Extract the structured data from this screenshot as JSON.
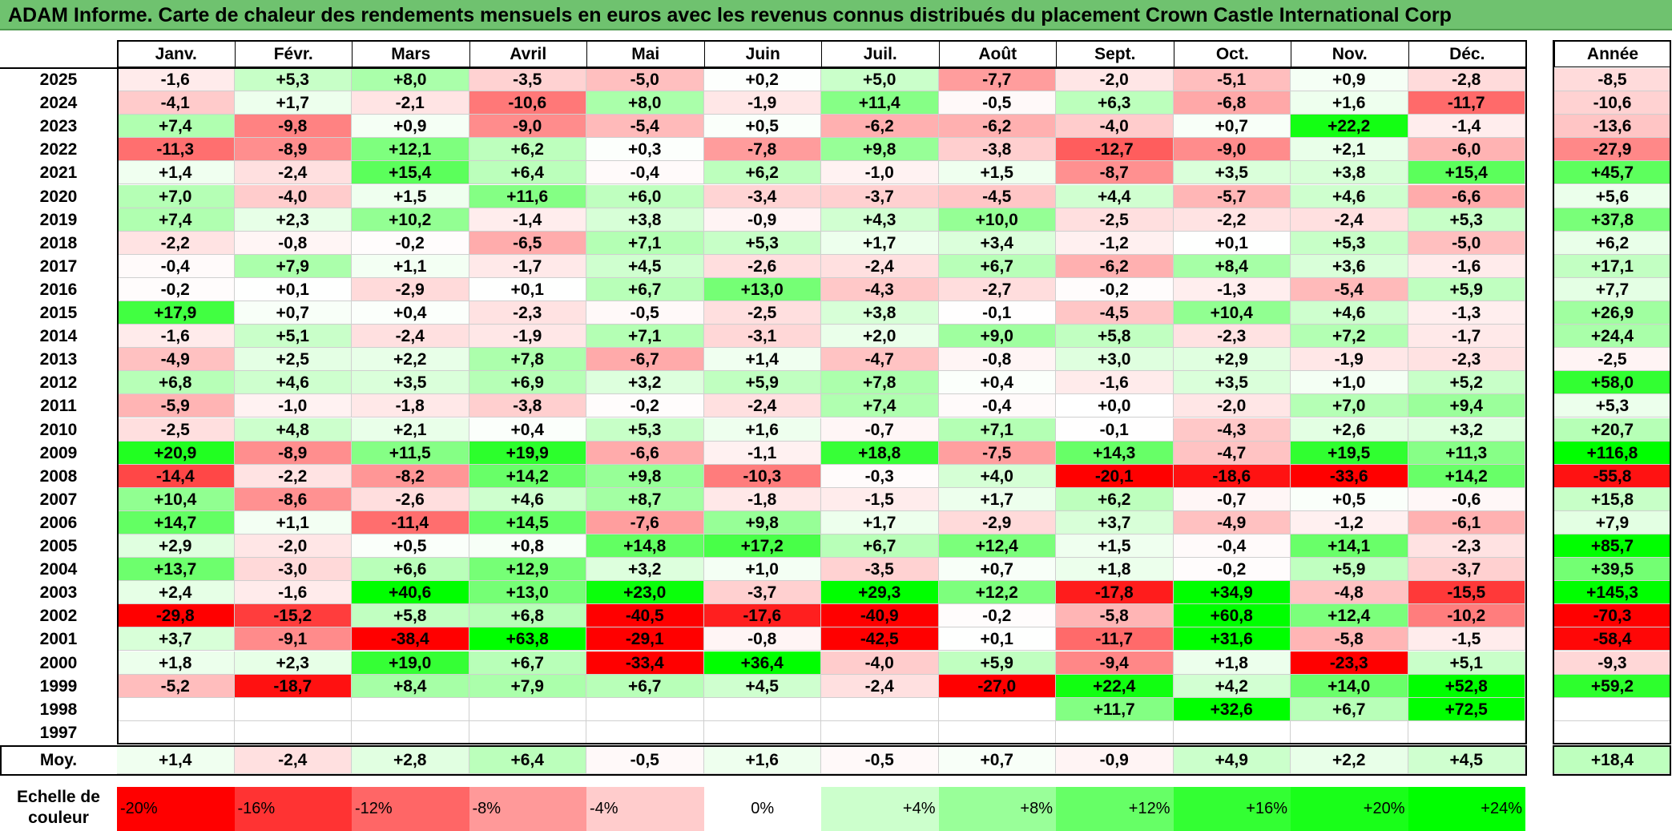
{
  "title": "ADAM Informe. Carte de chaleur des rendements mensuels en euros avec les revenus connus distribués du placement Crown Castle International Corp",
  "chart_data": {
    "type": "heatmap",
    "months": [
      "Janv.",
      "Févr.",
      "Mars",
      "Avril",
      "Mai",
      "Juin",
      "Juil.",
      "Août",
      "Sept.",
      "Oct.",
      "Nov.",
      "Déc."
    ],
    "year_header": "Année",
    "rows": [
      {
        "year": "2025",
        "values": [
          "-1,6",
          "+5,3",
          "+8,0",
          "-3,5",
          "-5,0",
          "+0,2",
          "+5,0",
          "-7,7",
          "-2,0",
          "-5,1",
          "+0,9",
          "-2,8"
        ],
        "annual": "-8,5"
      },
      {
        "year": "2024",
        "values": [
          "-4,1",
          "+1,7",
          "-2,1",
          "-10,6",
          "+8,0",
          "-1,9",
          "+11,4",
          "-0,5",
          "+6,3",
          "-6,8",
          "+1,6",
          "-11,7"
        ],
        "annual": "-10,6"
      },
      {
        "year": "2023",
        "values": [
          "+7,4",
          "-9,8",
          "+0,9",
          "-9,0",
          "-5,4",
          "+0,5",
          "-6,2",
          "-6,2",
          "-4,0",
          "+0,7",
          "+22,2",
          "-1,4"
        ],
        "annual": "-13,6"
      },
      {
        "year": "2022",
        "values": [
          "-11,3",
          "-8,9",
          "+12,1",
          "+6,2",
          "+0,3",
          "-7,8",
          "+9,8",
          "-3,8",
          "-12,7",
          "-9,0",
          "+2,1",
          "-6,0"
        ],
        "annual": "-27,9"
      },
      {
        "year": "2021",
        "values": [
          "+1,4",
          "-2,4",
          "+15,4",
          "+6,4",
          "-0,4",
          "+6,2",
          "-1,0",
          "+1,5",
          "-8,7",
          "+3,5",
          "+3,8",
          "+15,4"
        ],
        "annual": "+45,7"
      },
      {
        "year": "2020",
        "values": [
          "+7,0",
          "-4,0",
          "+1,5",
          "+11,6",
          "+6,0",
          "-3,4",
          "-3,7",
          "-4,5",
          "+4,4",
          "-5,7",
          "+4,6",
          "-6,6"
        ],
        "annual": "+5,6"
      },
      {
        "year": "2019",
        "values": [
          "+7,4",
          "+2,3",
          "+10,2",
          "-1,4",
          "+3,8",
          "-0,9",
          "+4,3",
          "+10,0",
          "-2,5",
          "-2,2",
          "-2,4",
          "+5,3"
        ],
        "annual": "+37,8"
      },
      {
        "year": "2018",
        "values": [
          "-2,2",
          "-0,8",
          "-0,2",
          "-6,5",
          "+7,1",
          "+5,3",
          "+1,7",
          "+3,4",
          "-1,2",
          "+0,1",
          "+5,3",
          "-5,0"
        ],
        "annual": "+6,2"
      },
      {
        "year": "2017",
        "values": [
          "-0,4",
          "+7,9",
          "+1,1",
          "-1,7",
          "+4,5",
          "-2,6",
          "-2,4",
          "+6,7",
          "-6,2",
          "+8,4",
          "+3,6",
          "-1,6"
        ],
        "annual": "+17,1"
      },
      {
        "year": "2016",
        "values": [
          "-0,2",
          "+0,1",
          "-2,9",
          "+0,1",
          "+6,7",
          "+13,0",
          "-4,3",
          "-2,7",
          "-0,2",
          "-1,3",
          "-5,4",
          "+5,9"
        ],
        "annual": "+7,7"
      },
      {
        "year": "2015",
        "values": [
          "+17,9",
          "+0,7",
          "+0,4",
          "-2,3",
          "-0,5",
          "-2,5",
          "+3,8",
          "-0,1",
          "-4,5",
          "+10,4",
          "+4,6",
          "-1,3"
        ],
        "annual": "+26,9"
      },
      {
        "year": "2014",
        "values": [
          "-1,6",
          "+5,1",
          "-2,4",
          "-1,9",
          "+7,1",
          "-3,1",
          "+2,0",
          "+9,0",
          "+5,8",
          "-2,3",
          "+7,2",
          "-1,7"
        ],
        "annual": "+24,4"
      },
      {
        "year": "2013",
        "values": [
          "-4,9",
          "+2,5",
          "+2,2",
          "+7,8",
          "-6,7",
          "+1,4",
          "-4,7",
          "-0,8",
          "+3,0",
          "+2,9",
          "-1,9",
          "-2,3"
        ],
        "annual": "-2,5"
      },
      {
        "year": "2012",
        "values": [
          "+6,8",
          "+4,6",
          "+3,5",
          "+6,9",
          "+3,2",
          "+5,9",
          "+7,8",
          "+0,4",
          "-1,6",
          "+3,5",
          "+1,0",
          "+5,2"
        ],
        "annual": "+58,0"
      },
      {
        "year": "2011",
        "values": [
          "-5,9",
          "-1,0",
          "-1,8",
          "-3,8",
          "-0,2",
          "-2,4",
          "+7,4",
          "-0,4",
          "+0,0",
          "-2,0",
          "+7,0",
          "+9,4"
        ],
        "annual": "+5,3"
      },
      {
        "year": "2010",
        "values": [
          "-2,5",
          "+4,8",
          "+2,1",
          "+0,4",
          "+5,3",
          "+1,6",
          "-0,7",
          "+7,1",
          "-0,1",
          "-4,3",
          "+2,6",
          "+3,2"
        ],
        "annual": "+20,7"
      },
      {
        "year": "2009",
        "values": [
          "+20,9",
          "-8,9",
          "+11,5",
          "+19,9",
          "-6,6",
          "-1,1",
          "+18,8",
          "-7,5",
          "+14,3",
          "-4,7",
          "+19,5",
          "+11,3"
        ],
        "annual": "+116,8"
      },
      {
        "year": "2008",
        "values": [
          "-14,4",
          "-2,2",
          "-8,2",
          "+14,2",
          "+9,8",
          "-10,3",
          "-0,3",
          "+4,0",
          "-20,1",
          "-18,6",
          "-33,6",
          "+14,2"
        ],
        "annual": "-55,8"
      },
      {
        "year": "2007",
        "values": [
          "+10,4",
          "-8,6",
          "-2,6",
          "+4,6",
          "+8,7",
          "-1,8",
          "-1,5",
          "+1,7",
          "+6,2",
          "-0,7",
          "+0,5",
          "-0,6"
        ],
        "annual": "+15,8"
      },
      {
        "year": "2006",
        "values": [
          "+14,7",
          "+1,1",
          "-11,4",
          "+14,5",
          "-7,6",
          "+9,8",
          "+1,7",
          "-2,9",
          "+3,7",
          "-4,9",
          "-1,2",
          "-6,1"
        ],
        "annual": "+7,9"
      },
      {
        "year": "2005",
        "values": [
          "+2,9",
          "-2,0",
          "+0,5",
          "+0,8",
          "+14,8",
          "+17,2",
          "+6,7",
          "+12,4",
          "+1,5",
          "-0,4",
          "+14,1",
          "-2,3"
        ],
        "annual": "+85,7"
      },
      {
        "year": "2004",
        "values": [
          "+13,7",
          "-3,0",
          "+6,6",
          "+12,9",
          "+3,2",
          "+1,0",
          "-3,5",
          "+0,7",
          "+1,8",
          "-0,2",
          "+5,9",
          "-3,7"
        ],
        "annual": "+39,5"
      },
      {
        "year": "2003",
        "values": [
          "+2,4",
          "-1,6",
          "+40,6",
          "+13,0",
          "+23,0",
          "-3,7",
          "+29,3",
          "+12,2",
          "-17,8",
          "+34,9",
          "-4,8",
          "-15,5"
        ],
        "annual": "+145,3"
      },
      {
        "year": "2002",
        "values": [
          "-29,8",
          "-15,2",
          "+5,8",
          "+6,8",
          "-40,5",
          "-17,6",
          "-40,9",
          "-0,2",
          "-5,8",
          "+60,8",
          "+12,4",
          "-10,2"
        ],
        "annual": "-70,3"
      },
      {
        "year": "2001",
        "values": [
          "+3,7",
          "-9,1",
          "-38,4",
          "+63,8",
          "-29,1",
          "-0,8",
          "-42,5",
          "+0,1",
          "-11,7",
          "+31,6",
          "-5,8",
          "-1,5"
        ],
        "annual": "-58,4"
      },
      {
        "year": "2000",
        "values": [
          "+1,8",
          "+2,3",
          "+19,0",
          "+6,7",
          "-33,4",
          "+36,4",
          "-4,0",
          "+5,9",
          "-9,4",
          "+1,8",
          "-23,3",
          "+5,1"
        ],
        "annual": "-9,3"
      },
      {
        "year": "1999",
        "values": [
          "-5,2",
          "-18,7",
          "+8,4",
          "+7,9",
          "+6,7",
          "+4,5",
          "-2,4",
          "-27,0",
          "+22,4",
          "+4,2",
          "+14,0",
          "+52,8"
        ],
        "annual": "+59,2"
      },
      {
        "year": "1998",
        "values": [
          "",
          "",
          "",
          "",
          "",
          "",
          "",
          "",
          "+11,7",
          "+32,6",
          "+6,7",
          "+72,5"
        ],
        "annual": ""
      },
      {
        "year": "1997",
        "values": [
          "",
          "",
          "",
          "",
          "",
          "",
          "",
          "",
          "",
          "",
          "",
          ""
        ],
        "annual": ""
      }
    ],
    "average": {
      "label": "Moy.",
      "values": [
        "+1,4",
        "-2,4",
        "+2,8",
        "+6,4",
        "-0,5",
        "+1,6",
        "-0,5",
        "+0,7",
        "-0,9",
        "+4,9",
        "+2,2",
        "+4,5"
      ],
      "annual": "+18,4"
    },
    "scale": {
      "label_line1": "Echelle de",
      "label_line2": "couleur",
      "steps": [
        {
          "label": "-20%",
          "value": -20,
          "color": "#ff0000"
        },
        {
          "label": "-16%",
          "value": -16,
          "color": "#ff3333"
        },
        {
          "label": "-12%",
          "value": -12,
          "color": "#ff6666"
        },
        {
          "label": "-8%",
          "value": -8,
          "color": "#ff9999"
        },
        {
          "label": "-4%",
          "value": -4,
          "color": "#ffcccc"
        },
        {
          "label": "0%",
          "value": 0,
          "color": "#ffffff"
        },
        {
          "label": "+4%",
          "value": 4,
          "color": "#ccffcc"
        },
        {
          "label": "+8%",
          "value": 8,
          "color": "#99ff99"
        },
        {
          "label": "+12%",
          "value": 12,
          "color": "#66ff66"
        },
        {
          "label": "+16%",
          "value": 16,
          "color": "#33ff33"
        },
        {
          "label": "+20%",
          "value": 20,
          "color": "#19ff19"
        },
        {
          "label": "+24%",
          "value": 24,
          "color": "#00ff00"
        }
      ]
    }
  }
}
